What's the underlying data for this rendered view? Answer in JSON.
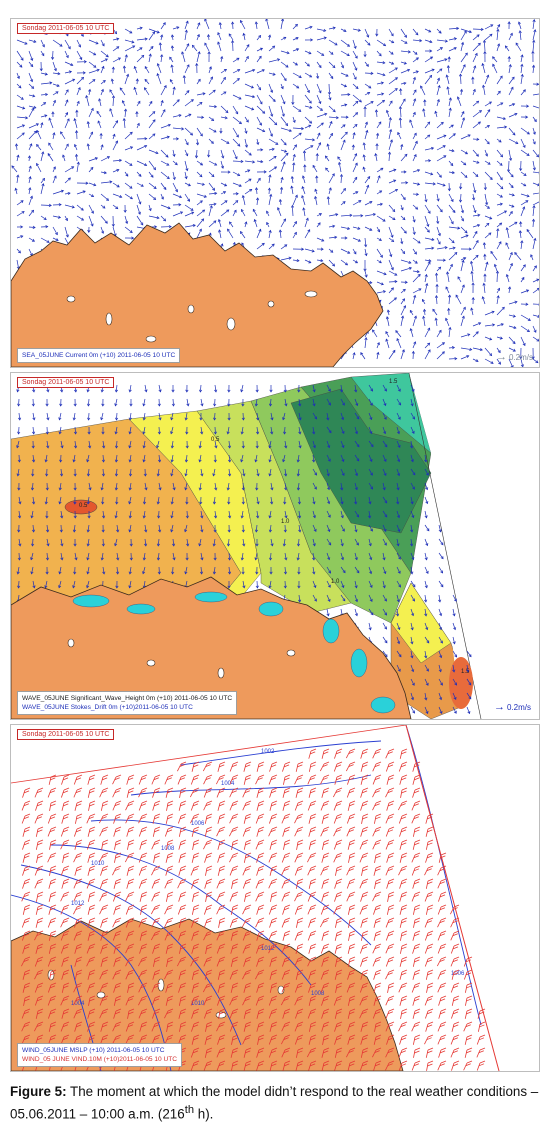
{
  "panels": [
    {
      "date_label": "Sondag 2011-06-05 10 UTC",
      "info_lines": [
        {
          "text": "SEA_05JUNE Current 0m (+10) 2011-06-05 10 UTC",
          "color": "#1e2fb8"
        }
      ],
      "scale_label": "0.2m/s",
      "arrow_color": "#1e2fb8"
    },
    {
      "date_label": "Sondag 2011-06-05 10 UTC",
      "info_lines": [
        {
          "text": "WAVE_05JUNE Significant_Wave_Height 0m (+10) 2011-06-05 10 UTC",
          "color": "#1a1a1a"
        },
        {
          "text": "WAVE_05JUNE Stokes_Drift 0m (+10)2011-06-05 10 UTC",
          "color": "#1e2fb8"
        }
      ],
      "scale_label": "0.2m/s",
      "contour_labels": [
        "1.5",
        "0.5",
        "0.5",
        "1.0",
        "1.0",
        "1.5"
      ],
      "arrow_color": "#1e2fb8"
    },
    {
      "date_label": "Sondag 2011-06-05 10 UTC",
      "info_lines": [
        {
          "text": "WIND_05JUNE MSLP (+10) 2011-06-05 10 UTC",
          "color": "#1e2fb8"
        },
        {
          "text": "WIND_05 JUNE VIND.10M (+10)2011-06-05 10 UTC",
          "color": "#d32f2f"
        }
      ],
      "isobar_labels": [
        "1002",
        "1004",
        "1006",
        "1008",
        "1010",
        "1012",
        "1012",
        "1008",
        "1006",
        "1010",
        "1004"
      ],
      "barb_color": "#e53935",
      "isobar_color": "#2a3fd1"
    }
  ],
  "colors": {
    "land": "#ee9a5c",
    "ice": "#2ad1d9"
  },
  "caption": {
    "label": "Figure 5:",
    "text": "The moment at which the model didn’t respond to the real weather conditions – 05.06.2011 – 10:00 a.m. (216",
    "superscript": "th",
    "suffix": " h)."
  }
}
